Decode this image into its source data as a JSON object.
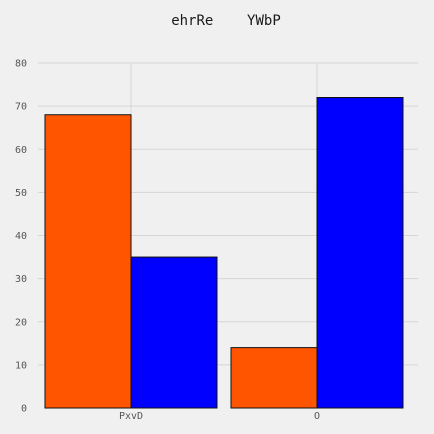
{
  "chart_data": {
    "type": "bar",
    "title": "ehrRe    YWbP",
    "categories": [
      "PxvD",
      "O"
    ],
    "series": [
      {
        "values": [
          68,
          14
        ],
        "color": "#ff5500"
      },
      {
        "values": [
          35,
          72
        ],
        "color": "#0000ff"
      }
    ],
    "ylim": [
      0,
      80
    ],
    "yticks": [
      "0",
      "10",
      "20",
      "30",
      "40",
      "50",
      "60",
      "70",
      "80"
    ],
    "grid": true,
    "background": "#f0f0f0"
  }
}
